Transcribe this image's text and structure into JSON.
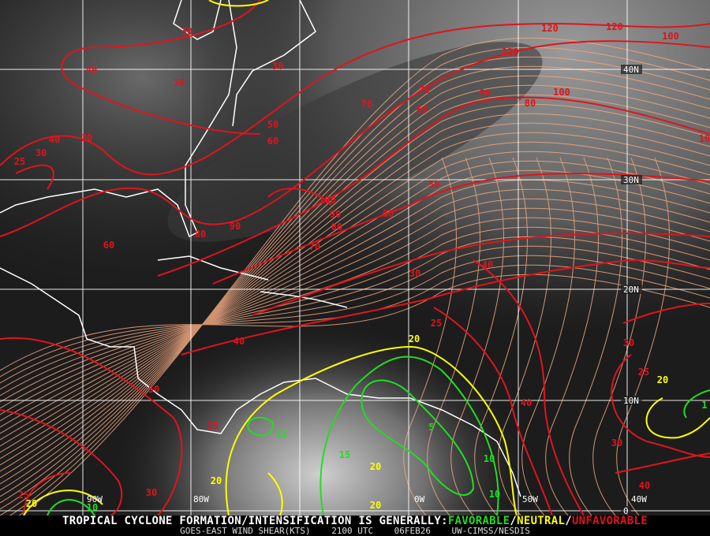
{
  "map": {
    "grid": {
      "longitudes": [
        "90W",
        "80W",
        "0W",
        "50W",
        "40W"
      ],
      "latitudes": [
        "40N",
        "30N",
        "20N",
        "10N",
        "0"
      ]
    },
    "contour_labels": {
      "unfavorable": [
        "120",
        "120",
        "100",
        "120",
        "90",
        "80",
        "100",
        "10",
        "70",
        "60",
        "70",
        "50",
        "60",
        "100",
        "90",
        "80",
        "90",
        "80",
        "70",
        "60",
        "30",
        "40",
        "25",
        "40",
        "30",
        "25",
        "40",
        "30",
        "40",
        "50",
        "25",
        "30",
        "25",
        "40",
        "30",
        "30",
        "25",
        "30",
        "40",
        "30",
        "50",
        "60",
        "30"
      ],
      "neutral": [
        "20",
        "20",
        "20",
        "20",
        "20",
        "20"
      ],
      "favorable": [
        "15",
        "15",
        "5",
        "10",
        "10",
        "1",
        "10"
      ]
    },
    "colors": {
      "unfavorable": "#e0141c",
      "neutral": "#ffff00",
      "favorable": "#22dd22",
      "streamline": "#f0a880",
      "coastline": "#ffffff"
    }
  },
  "footer": {
    "prefix": "TROPICAL CYCLONE FORMATION/INTENSIFICATION IS GENERALLY:",
    "favorable": "FAVORABLE",
    "sep1": "/",
    "neutral": "NEUTRAL",
    "sep2": "/",
    "unfavorable": "UNFAVORABLE",
    "product": "GOES-EAST WIND SHEAR(KTS)",
    "time": "2100 UTC",
    "date": "06FEB26",
    "source": "UW-CIMSS/NESDIS"
  }
}
